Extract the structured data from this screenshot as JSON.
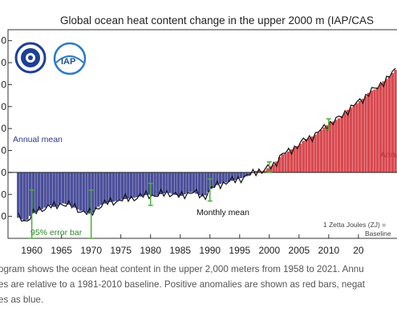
{
  "chart_data": {
    "type": "bar",
    "title": "Global ocean heat content change in the upper 2000 m (IAP/CAS",
    "x_ticks": [
      "1960",
      "1965",
      "1970",
      "1975",
      "1980",
      "1985",
      "1990",
      "1995",
      "2000",
      "2005",
      "2010",
      "20"
    ],
    "y_tick_labels": [
      "0",
      "0",
      "0",
      "0",
      "0",
      "0",
      "0",
      "0",
      "0"
    ],
    "xlim": [
      1956,
      2021.5
    ],
    "ylim": [
      -150,
      325
    ],
    "years": [
      1958,
      1959,
      1960,
      1961,
      1962,
      1963,
      1964,
      1965,
      1966,
      1967,
      1968,
      1969,
      1970,
      1971,
      1972,
      1973,
      1974,
      1975,
      1976,
      1977,
      1978,
      1979,
      1980,
      1981,
      1982,
      1983,
      1984,
      1985,
      1986,
      1987,
      1988,
      1989,
      1990,
      1991,
      1992,
      1993,
      1994,
      1995,
      1996,
      1997,
      1998,
      1999,
      2000,
      2001,
      2002,
      2003,
      2004,
      2005,
      2006,
      2007,
      2008,
      2009,
      2010,
      2011,
      2012,
      2013,
      2014,
      2015,
      2016,
      2017,
      2018,
      2019,
      2020,
      2021
    ],
    "annual_mean": [
      -105,
      -112,
      -95,
      -88,
      -82,
      -74,
      -80,
      -70,
      -72,
      -78,
      -86,
      -90,
      -95,
      -80,
      -72,
      -68,
      -66,
      -62,
      -60,
      -58,
      -56,
      -52,
      -50,
      -54,
      -48,
      -46,
      -50,
      -55,
      -48,
      -44,
      -50,
      -56,
      -40,
      -30,
      -25,
      -22,
      -18,
      -14,
      -10,
      -4,
      6,
      2,
      12,
      20,
      40,
      45,
      55,
      62,
      75,
      80,
      88,
      100,
      110,
      118,
      125,
      140,
      150,
      160,
      170,
      185,
      190,
      205,
      215,
      230
    ],
    "annotations": {
      "annual_label_neg": "Annual mean",
      "annual_label_pos": "Annu",
      "monthly_label": "Monthly mean",
      "error_label": "95% error bar",
      "unit_line1": "1 Zetta Joules (ZJ) =",
      "unit_line2": "Baseline"
    },
    "colors": {
      "negative": "#4b4f9a",
      "positive": "#d8494f",
      "monthly": "#111111",
      "error": "#4caf3a"
    },
    "logos": [
      "chinese-academy-of-sciences-seal",
      "iap-logo"
    ]
  },
  "caption": {
    "line1": "ogram shows the ocean heat content in the upper 2,000 meters from 1958 to 2021. Annu",
    "line2": "es are relative to a 1981-2010 baseline. Positive anomalies are shown as red bars, negat",
    "line3": "es as blue."
  }
}
